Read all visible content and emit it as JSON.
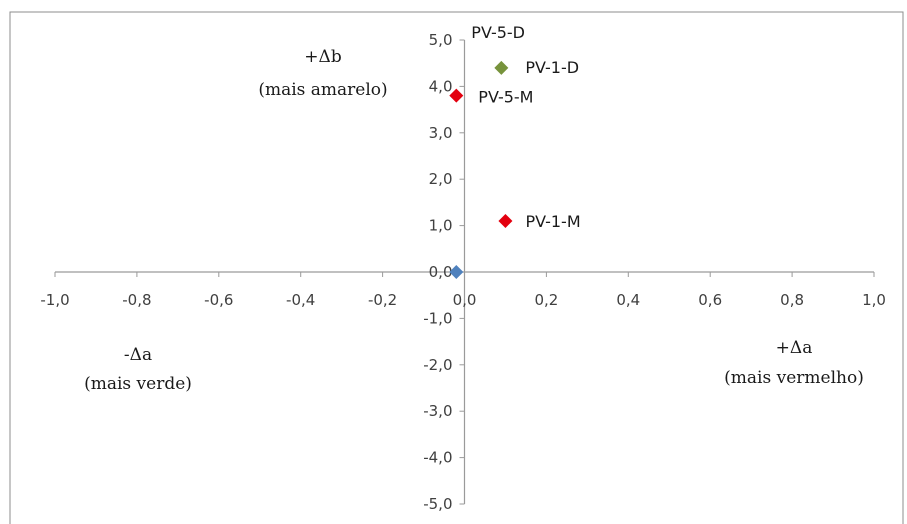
{
  "chart_data": {
    "type": "scatter",
    "title": "",
    "xlim": [
      -1.0,
      1.0
    ],
    "ylim": [
      -5.0,
      5.0
    ],
    "x_ticks": [
      "-1,0",
      "-0,8",
      "-0,6",
      "-0,4",
      "-0,2",
      "0,0",
      "0,2",
      "0,4",
      "0,6",
      "0,8",
      "1,0"
    ],
    "y_ticks": [
      "5,0",
      "4,0",
      "3,0",
      "2,0",
      "1,0",
      "0,0",
      "-1,0",
      "-2,0",
      "-3,0",
      "-4,0",
      "-5,0"
    ],
    "grid": false,
    "legend": "none",
    "points": [
      {
        "label": "PV-5-D",
        "x": -0.02,
        "y": 0.0,
        "color": "#4f81bd"
      },
      {
        "label": "PV-1-D",
        "x": 0.09,
        "y": 4.4,
        "color": "#77933c"
      },
      {
        "label": "PV-5-M",
        "x": -0.02,
        "y": 3.8,
        "color": "#e3000f"
      },
      {
        "label": "PV-1-M",
        "x": 0.1,
        "y": 1.1,
        "color": "#e3000f"
      }
    ],
    "quadrant_labels": {
      "top": [
        "+Δb",
        "(mais amarelo)"
      ],
      "left": [
        "-Δa",
        "(mais verde)"
      ],
      "right": [
        "+Δa",
        "(mais vermelho)"
      ]
    }
  }
}
